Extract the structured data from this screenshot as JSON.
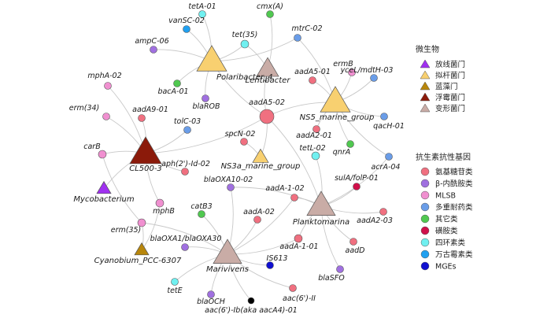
{
  "colors": {
    "phylum": {
      "actinobacteria": "#a030f0",
      "bacteroidetes": "#f8d070",
      "cyanobacteria": "#b8860b",
      "planctomycetes": "#8b1a0a",
      "proteobacteria": "#c9aca6"
    },
    "gene": {
      "aminoglycoside": "#f07080",
      "beta_lactam": "#a070e0",
      "mlsb": "#f090d0",
      "multidrug": "#6a9de8",
      "other": "#50c850",
      "sulfonamide": "#d0104a",
      "tetracycline": "#70f0f0",
      "vancomycin": "#20a0f0",
      "mges": "#1010d0",
      "black": "#000000"
    },
    "edge": "#c8c8c8",
    "node_stroke": "#555555"
  },
  "legend": {
    "phylum_title": "微生物",
    "phylum_items": [
      {
        "label": "放线菌门",
        "color_key": "actinobacteria"
      },
      {
        "label": "拟杆菌门",
        "color_key": "bacteroidetes"
      },
      {
        "label": "蓝藻门",
        "color_key": "cyanobacteria"
      },
      {
        "label": "浮霉菌门",
        "color_key": "planctomycetes"
      },
      {
        "label": "变形菌门",
        "color_key": "proteobacteria"
      }
    ],
    "gene_title": "抗生素抗性基因",
    "gene_items": [
      {
        "label": "氨基糖苷类",
        "color_key": "aminoglycoside"
      },
      {
        "label": "β-内酰胺类",
        "color_key": "beta_lactam"
      },
      {
        "label": "MLSB",
        "color_key": "mlsb"
      },
      {
        "label": "多重耐药类",
        "color_key": "multidrug"
      },
      {
        "label": "其它类",
        "color_key": "other"
      },
      {
        "label": "磺胺类",
        "color_key": "sulfonamide"
      },
      {
        "label": "四环素类",
        "color_key": "tetracycline"
      },
      {
        "label": "万古霉素类",
        "color_key": "vancomycin"
      },
      {
        "label": "MGEs",
        "color_key": "mges"
      }
    ]
  },
  "hubs": [
    {
      "id": "Polaribacter_4",
      "label": "Polaribacter_4",
      "phylum": "bacteroidetes"
    },
    {
      "id": "Lentibacter",
      "label": "Lentibacter",
      "phylum": "proteobacteria"
    },
    {
      "id": "NS5_marine_group",
      "label": "NS5_marine_group",
      "phylum": "bacteroidetes"
    },
    {
      "id": "CL500-3",
      "label": "CL500-3",
      "phylum": "planctomycetes"
    },
    {
      "id": "NS3a_marine_group",
      "label": "NS3a_marine_group",
      "phylum": "bacteroidetes"
    },
    {
      "id": "Mycobacterium",
      "label": "Mycobacterium",
      "phylum": "actinobacteria"
    },
    {
      "id": "Cyanobium_PCC-6307",
      "label": "Cyanobium_PCC-6307",
      "phylum": "cyanobacteria"
    },
    {
      "id": "Planktomarina",
      "label": "Planktomarina",
      "phylum": "proteobacteria"
    },
    {
      "id": "Marivivens",
      "label": "Marivivens",
      "phylum": "proteobacteria"
    }
  ],
  "genes": [
    {
      "id": "tetA-01",
      "label": "tetA-01",
      "class": "tetracycline"
    },
    {
      "id": "cmx(A)",
      "label": "cmx(A)",
      "class": "other"
    },
    {
      "id": "vanSC-02",
      "label": "vanSC-02",
      "class": "vancomycin"
    },
    {
      "id": "tet(35)",
      "label": "tet(35)",
      "class": "tetracycline"
    },
    {
      "id": "mtrC-02",
      "label": "mtrC-02",
      "class": "multidrug"
    },
    {
      "id": "ampC-06",
      "label": "ampC-06",
      "class": "beta_lactam"
    },
    {
      "id": "ermB",
      "label": "ermB",
      "class": "mlsb"
    },
    {
      "id": "bacA-01",
      "label": "bacA-01",
      "class": "other"
    },
    {
      "id": "aadA5-01",
      "label": "aadA5-01",
      "class": "aminoglycoside"
    },
    {
      "id": "yceL/mdtH-03",
      "label": "yceL/mdtH-03",
      "class": "multidrug"
    },
    {
      "id": "mphA-02",
      "label": "mphA-02",
      "class": "mlsb"
    },
    {
      "id": "blaROB",
      "label": "blaROB",
      "class": "beta_lactam"
    },
    {
      "id": "aadA5-02",
      "label": "aadA5-02",
      "class": "aminoglycoside"
    },
    {
      "id": "erm(34)",
      "label": "erm(34)",
      "class": "mlsb"
    },
    {
      "id": "aadA9-01",
      "label": "aadA9-01",
      "class": "aminoglycoside"
    },
    {
      "id": "qacH-01",
      "label": "qacH-01",
      "class": "multidrug"
    },
    {
      "id": "tolC-03",
      "label": "tolC-03",
      "class": "multidrug"
    },
    {
      "id": "aadA2-01",
      "label": "aadA2-01",
      "class": "aminoglycoside"
    },
    {
      "id": "qnrA",
      "label": "qnrA",
      "class": "other"
    },
    {
      "id": "carB",
      "label": "carB",
      "class": "mlsb"
    },
    {
      "id": "spcN-02",
      "label": "spcN-02",
      "class": "aminoglycoside"
    },
    {
      "id": "acrA-04",
      "label": "acrA-04",
      "class": "multidrug"
    },
    {
      "id": "tetL-02",
      "label": "tetL-02",
      "class": "tetracycline"
    },
    {
      "id": "aph(2')-Id-02",
      "label": "aph(2')-Id-02",
      "class": "aminoglycoside"
    },
    {
      "id": "sulA/folP-01",
      "label": "sulA/folP-01",
      "class": "sulfonamide"
    },
    {
      "id": "blaOXA10-02",
      "label": "blaOXA10-02",
      "class": "beta_lactam"
    },
    {
      "id": "aadA-1-02",
      "label": "aadA-1-02",
      "class": "aminoglycoside"
    },
    {
      "id": "catB3",
      "label": "catB3",
      "class": "other"
    },
    {
      "id": "mphB",
      "label": "mphB",
      "class": "mlsb"
    },
    {
      "id": "aadA-02",
      "label": "aadA-02",
      "class": "aminoglycoside"
    },
    {
      "id": "aadA2-03",
      "label": "aadA2-03",
      "class": "aminoglycoside"
    },
    {
      "id": "erm(35)",
      "label": "erm(35)",
      "class": "mlsb"
    },
    {
      "id": "blaOXA1/blaOXA30",
      "label": "blaOXA1/blaOXA30",
      "class": "beta_lactam"
    },
    {
      "id": "aadA-1-01",
      "label": "aadA-1-01",
      "class": "aminoglycoside"
    },
    {
      "id": "aadD",
      "label": "aadD",
      "class": "aminoglycoside"
    },
    {
      "id": "IS613",
      "label": "IS613",
      "class": "mges"
    },
    {
      "id": "blaSFO",
      "label": "blaSFO",
      "class": "beta_lactam"
    },
    {
      "id": "tetE",
      "label": "tetE",
      "class": "tetracycline"
    },
    {
      "id": "blaOCH",
      "label": "blaOCH",
      "class": "beta_lactam"
    },
    {
      "id": "aac(6')-II",
      "label": "aac(6')-II",
      "class": "aminoglycoside"
    },
    {
      "id": "aac(6')-Ib(aka aacA4)-01",
      "label": "aac(6')-Ib(aka aacA4)-01",
      "class": "black"
    }
  ],
  "edges": [
    [
      "Polaribacter_4",
      "tetA-01"
    ],
    [
      "Polaribacter_4",
      "vanSC-02"
    ],
    [
      "Polaribacter_4",
      "tet(35)"
    ],
    [
      "Polaribacter_4",
      "ampC-06"
    ],
    [
      "Polaribacter_4",
      "bacA-01"
    ],
    [
      "Polaribacter_4",
      "blaROB"
    ],
    [
      "Polaribacter_4",
      "aadA5-02"
    ],
    [
      "Polaribacter_4",
      "mtrC-02"
    ],
    [
      "Lentibacter",
      "cmx(A)"
    ],
    [
      "Lentibacter",
      "tet(35)"
    ],
    [
      "Lentibacter",
      "aadA5-02"
    ],
    [
      "NS5_marine_group",
      "mtrC-02"
    ],
    [
      "NS5_marine_group",
      "ermB"
    ],
    [
      "NS5_marine_group",
      "aadA5-01"
    ],
    [
      "NS5_marine_group",
      "yceL/mdtH-03"
    ],
    [
      "NS5_marine_group",
      "qacH-01"
    ],
    [
      "NS5_marine_group",
      "aadA2-01"
    ],
    [
      "NS5_marine_group",
      "qnrA"
    ],
    [
      "NS5_marine_group",
      "acrA-04"
    ],
    [
      "NS5_marine_group",
      "aadA5-02"
    ],
    [
      "CL500-3",
      "mphA-02"
    ],
    [
      "CL500-3",
      "erm(34)"
    ],
    [
      "CL500-3",
      "aadA9-01"
    ],
    [
      "CL500-3",
      "tolC-03"
    ],
    [
      "CL500-3",
      "carB"
    ],
    [
      "CL500-3",
      "aph(2')-Id-02"
    ],
    [
      "CL500-3",
      "aadA5-02"
    ],
    [
      "CL500-3",
      "Mycobacterium"
    ],
    [
      "CL500-3",
      "mphB"
    ],
    [
      "NS3a_marine_group",
      "spcN-02"
    ],
    [
      "NS3a_marine_group",
      "aadA5-02"
    ],
    [
      "Cyanobium_PCC-6307",
      "mphB"
    ],
    [
      "Cyanobium_PCC-6307",
      "erm(35)"
    ],
    [
      "carB",
      "erm(35)"
    ],
    [
      "Planktomarina",
      "tetL-02"
    ],
    [
      "Planktomarina",
      "sulA/folP-01"
    ],
    [
      "Planktomarina",
      "aadA-1-02"
    ],
    [
      "Planktomarina",
      "aadA2-03"
    ],
    [
      "Planktomarina",
      "aadD"
    ],
    [
      "Planktomarina",
      "blaSFO"
    ],
    [
      "Planktomarina",
      "aadA-1-01"
    ],
    [
      "Planktomarina",
      "aadA5-02"
    ],
    [
      "Planktomarina",
      "blaOXA10-02"
    ],
    [
      "Planktomarina",
      "acrA-04"
    ],
    [
      "Marivivens",
      "blaOXA10-02"
    ],
    [
      "Marivivens",
      "catB3"
    ],
    [
      "Marivivens",
      "aadA-02"
    ],
    [
      "Marivivens",
      "blaOXA1/blaOXA30"
    ],
    [
      "Marivivens",
      "aadA-1-01"
    ],
    [
      "Marivivens",
      "IS613"
    ],
    [
      "Marivivens",
      "tetE"
    ],
    [
      "Marivivens",
      "blaOCH"
    ],
    [
      "Marivivens",
      "aac(6')-II"
    ],
    [
      "Marivivens",
      "aac(6')-Ib(aka aacA4)-01"
    ],
    [
      "Marivivens",
      "aadA-1-02"
    ],
    [
      "Marivivens",
      "erm(35)"
    ]
  ]
}
